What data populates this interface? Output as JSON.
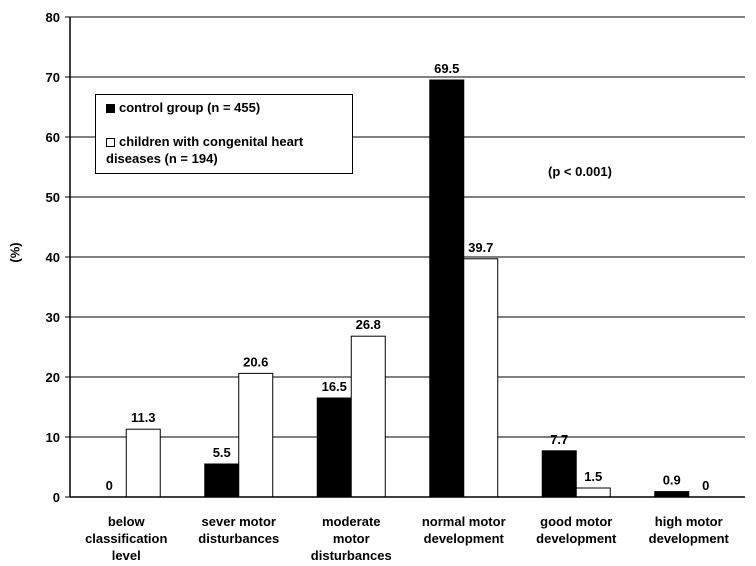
{
  "chart_data": {
    "type": "bar",
    "title": "",
    "ylabel": "(%)",
    "xlabel": "",
    "ylim": [
      0,
      80
    ],
    "yticks": [
      "0",
      "10",
      "20",
      "30",
      "40",
      "50",
      "60",
      "70",
      "80"
    ],
    "grid": true,
    "categories": [
      "below classification level",
      "sever motor disturbances",
      "moderate motor disturbances",
      "normal motor development",
      "good motor development",
      "high motor development"
    ],
    "series": [
      {
        "name": "control group (n = 455)",
        "color": "#000000",
        "values": [
          0,
          5.5,
          16.5,
          69.5,
          7.7,
          0.9
        ],
        "labels": [
          "0",
          "5.5",
          "16.5",
          "69.5",
          "7.7",
          "0.9"
        ]
      },
      {
        "name": "children with congenital heart diseases (n = 194)",
        "color": "#ffffff",
        "values": [
          11.3,
          20.6,
          26.8,
          39.7,
          1.5,
          0
        ],
        "labels": [
          "11.3",
          "20.6",
          "26.8",
          "39.7",
          "1.5",
          "0"
        ]
      }
    ],
    "legend_position": "top-left",
    "annotation": "(p < 0.001)"
  },
  "category_lines": [
    [
      "below",
      "classification",
      "level"
    ],
    [
      "sever motor",
      "disturbances"
    ],
    [
      "moderate",
      "motor",
      "disturbances"
    ],
    [
      "normal motor",
      "development"
    ],
    [
      "good motor",
      "development"
    ],
    [
      "high motor",
      "development"
    ]
  ],
  "legend": {
    "line1": "control group (n = 455)",
    "line2a": "children with congenital heart",
    "line2b": "diseases (n = 194)"
  }
}
